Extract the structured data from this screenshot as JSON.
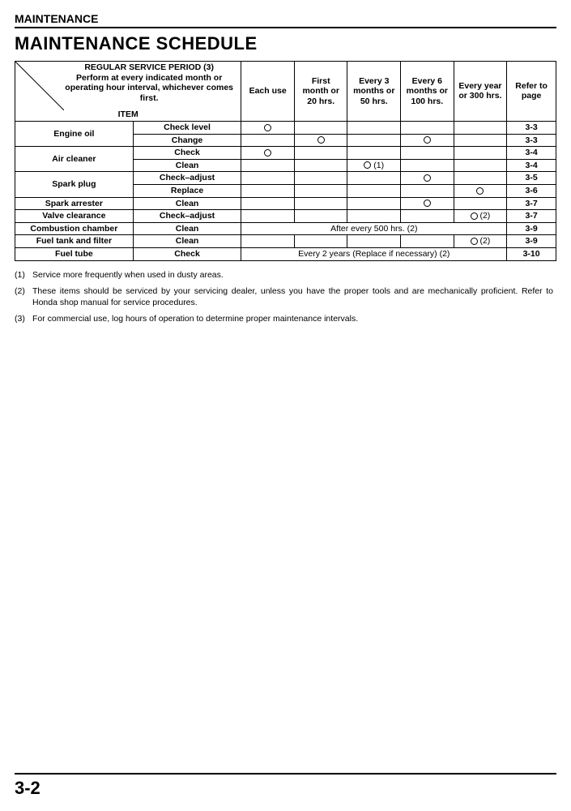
{
  "section_header": "MAINTENANCE",
  "page_title": "MAINTENANCE SCHEDULE",
  "header": {
    "regular_line1": "REGULAR SERVICE PERIOD (3)",
    "regular_line2": "Perform at every indicated month or operating hour interval, whichever comes first.",
    "item_label": "ITEM",
    "cols": [
      "Each use",
      "First month or 20 hrs.",
      "Every 3 months or 50 hrs.",
      "Every 6 months or 100 hrs.",
      "Every year or 300 hrs.",
      "Refer to page"
    ]
  },
  "rows": [
    {
      "item": "Engine oil",
      "task": "Check level",
      "c0": "o",
      "c1": "",
      "c2": "",
      "c3": "",
      "c4": "",
      "page": "3-3",
      "span_item": 2
    },
    {
      "item": "",
      "task": "Change",
      "c0": "",
      "c1": "o",
      "c2": "",
      "c3": "o",
      "c4": "",
      "page": "3-3"
    },
    {
      "item": "Air cleaner",
      "task": "Check",
      "c0": "o",
      "c1": "",
      "c2": "",
      "c3": "",
      "c4": "",
      "page": "3-4",
      "span_item": 2
    },
    {
      "item": "",
      "task": "Clean",
      "c0": "",
      "c1": "",
      "c2": "o (1)",
      "c3": "",
      "c4": "",
      "page": "3-4"
    },
    {
      "item": "Spark plug",
      "task": "Check–adjust",
      "c0": "",
      "c1": "",
      "c2": "",
      "c3": "o",
      "c4": "",
      "page": "3-5",
      "span_item": 2
    },
    {
      "item": "",
      "task": "Replace",
      "c0": "",
      "c1": "",
      "c2": "",
      "c3": "",
      "c4": "o",
      "page": "3-6"
    },
    {
      "item": "Spark arrester",
      "task": "Clean",
      "c0": "",
      "c1": "",
      "c2": "",
      "c3": "o",
      "c4": "",
      "page": "3-7"
    },
    {
      "item": "Valve clearance",
      "task": "Check–adjust",
      "c0": "",
      "c1": "",
      "c2": "",
      "c3": "",
      "c4": "o (2)",
      "page": "3-7"
    },
    {
      "item": "Combustion chamber",
      "task": "Clean",
      "merge": "After every 500 hrs. (2)",
      "page": "3-9"
    },
    {
      "item": "Fuel tank and filter",
      "task": "Clean",
      "c0": "",
      "c1": "",
      "c2": "",
      "c3": "",
      "c4": "o (2)",
      "page": "3-9"
    },
    {
      "item": "Fuel tube",
      "task": "Check",
      "merge": "Every 2 years (Replace if necessary) (2)",
      "page": "3-10"
    }
  ],
  "notes": [
    {
      "num": "(1)",
      "text": "Service more frequently when used in dusty areas."
    },
    {
      "num": "(2)",
      "text": "These items should be serviced by your servicing dealer, unless you have the proper tools and are mechanically proficient. Refer to Honda shop manual for service procedures."
    },
    {
      "num": "(3)",
      "text": "For commercial use, log hours of operation to determine proper maintenance intervals."
    }
  ],
  "page_number": "3-2",
  "col_widths": {
    "item": 120,
    "task": 110,
    "each": 54,
    "first": 54,
    "e3": 54,
    "e6": 54,
    "ey": 54,
    "page": 50
  },
  "colors": {
    "text": "#000000",
    "bg": "#ffffff",
    "border": "#000000"
  }
}
